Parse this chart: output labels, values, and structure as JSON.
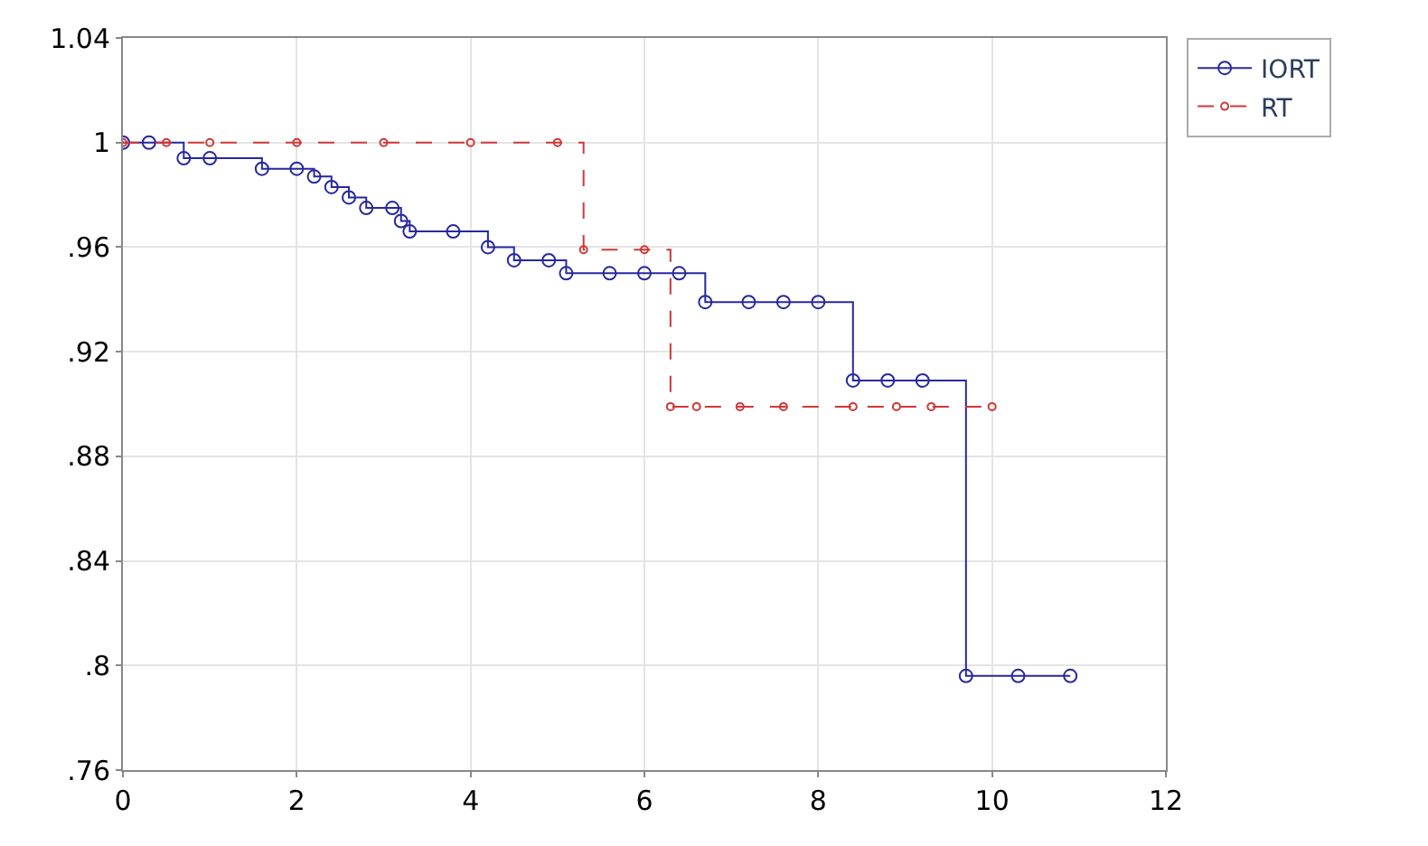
{
  "chart_data": {
    "type": "step",
    "xlim": [
      0,
      12
    ],
    "xticks": [
      0,
      2,
      4,
      6,
      8,
      10,
      12
    ],
    "ylim": [
      0.76,
      1.04
    ],
    "yticks": [
      {
        "value": 0.76,
        "label": ".76"
      },
      {
        "value": 0.8,
        "label": ".8"
      },
      {
        "value": 0.84,
        "label": ".84"
      },
      {
        "value": 0.88,
        "label": ".88"
      },
      {
        "value": 0.92,
        "label": ".92"
      },
      {
        "value": 0.96,
        "label": ".96"
      },
      {
        "value": 1,
        "label": "1"
      },
      {
        "value": 1.04,
        "label": "1.04"
      }
    ],
    "grid": true,
    "legend": "top right",
    "marker": "circle",
    "series": [
      {
        "name": "IORT",
        "color": "#2828a0",
        "line_style": "solid",
        "x": [
          0,
          0.3,
          0.7,
          1.0,
          1.6,
          2.0,
          2.2,
          2.4,
          2.6,
          2.8,
          3.1,
          3.2,
          3.3,
          3.8,
          4.2,
          4.5,
          4.9,
          5.1,
          5.6,
          6.0,
          6.4,
          6.7,
          7.2,
          7.6,
          8.0,
          8.4,
          8.8,
          9.2,
          9.7,
          10.3,
          10.9
        ],
        "values": [
          1,
          1,
          0.994,
          0.994,
          0.99,
          0.99,
          0.987,
          0.983,
          0.979,
          0.975,
          0.975,
          0.97,
          0.966,
          0.966,
          0.96,
          0.955,
          0.955,
          0.95,
          0.95,
          0.95,
          0.95,
          0.939,
          0.939,
          0.939,
          0.939,
          0.909,
          0.909,
          0.909,
          0.796,
          0.796,
          0.796
        ]
      },
      {
        "name": "RT",
        "color": "#d03838",
        "line_style": "dashed",
        "x": [
          0,
          0.5,
          1.0,
          2.0,
          3.0,
          4.0,
          5.0,
          5.3,
          6.0,
          6.3,
          6.6,
          7.1,
          7.6,
          8.4,
          8.9,
          9.3,
          10.0
        ],
        "values": [
          1,
          1,
          1,
          1,
          1,
          1,
          1,
          0.959,
          0.959,
          0.899,
          0.899,
          0.899,
          0.899,
          0.899,
          0.899,
          0.899,
          0.899
        ]
      }
    ]
  }
}
